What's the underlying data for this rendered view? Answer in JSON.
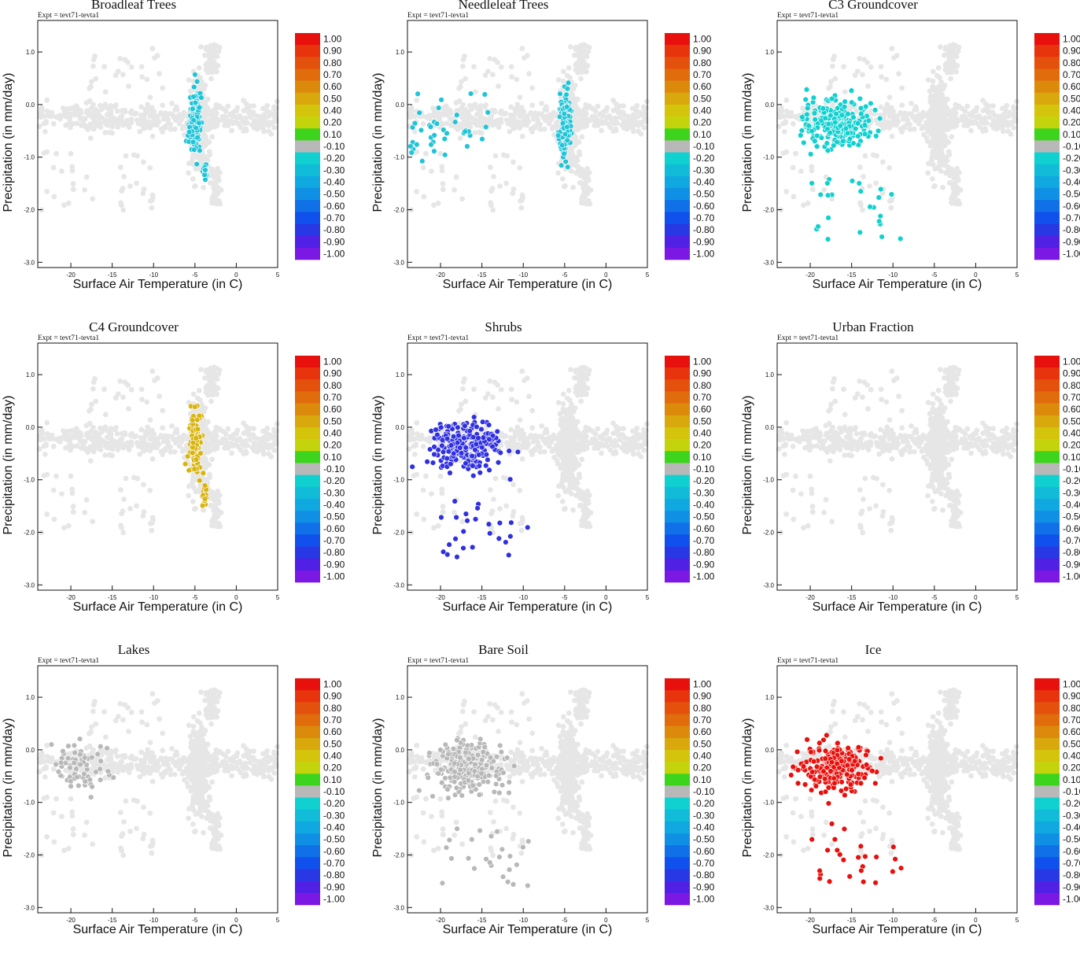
{
  "figure": {
    "expt_label": "Expt = tevt71-tevta1",
    "xlabel": "Surface Air Temperature (in C)",
    "ylabel": "Precipitation (in mm/day)"
  },
  "colorbar": {
    "labels": [
      "1.00",
      "0.90",
      "0.80",
      "0.70",
      "0.60",
      "0.50",
      "0.40",
      "0.20",
      "0.10",
      "-0.10",
      "-0.20",
      "-0.30",
      "-0.40",
      "-0.50",
      "-0.60",
      "-0.70",
      "-0.80",
      "-0.90",
      "-1.00"
    ],
    "colors": [
      "#e8100c",
      "#e8340c",
      "#e4510c",
      "#e06c0c",
      "#dc8a0c",
      "#d8a80c",
      "#d4c40c",
      "#c4d40c",
      "#3cd41c",
      "#b8b8b8",
      "#10d0d0",
      "#10bcd8",
      "#10a8e0",
      "#1090e4",
      "#1070e8",
      "#1050ec",
      "#2838e4",
      "#5020e4",
      "#7c18e4"
    ]
  },
  "chart_data": [
    {
      "type": "scatter",
      "title": "Broadleaf Trees",
      "xlim": [
        -24,
        5
      ],
      "ylim": [
        -3.1,
        1.6
      ],
      "xticks": [
        -20,
        -15,
        -10,
        -5,
        0,
        5
      ],
      "yticks": [
        1.0,
        0.0,
        -1.0,
        -2.0,
        -3.0
      ],
      "xlabel": "Surface Air Temperature (in C)",
      "ylabel": "Precipitation (in mm/day)",
      "highlight": "tropical",
      "highlight_color": "#20c4d8"
    },
    {
      "type": "scatter",
      "title": "Needleleaf Trees",
      "xlim": [
        -24,
        5
      ],
      "ylim": [
        -3.1,
        1.6
      ],
      "xticks": [
        -20,
        -15,
        -10,
        -5,
        0,
        5
      ],
      "yticks": [
        1.0,
        0.0,
        -1.0,
        -2.0,
        -3.0
      ],
      "xlabel": "Surface Air Temperature (in C)",
      "ylabel": "Precipitation (in mm/day)",
      "highlight": "tropical+cold",
      "highlight_color": "#20c4d8"
    },
    {
      "type": "scatter",
      "title": "C3 Groundcover",
      "xlim": [
        -24,
        5
      ],
      "ylim": [
        -3.1,
        1.6
      ],
      "xticks": [
        -20,
        -15,
        -10,
        -5,
        0,
        5
      ],
      "yticks": [
        1.0,
        0.0,
        -1.0,
        -2.0,
        -3.0
      ],
      "xlabel": "Surface Air Temperature (in C)",
      "ylabel": "Precipitation (in mm/day)",
      "highlight": "cold",
      "highlight_color": "#10d0d0"
    },
    {
      "type": "scatter",
      "title": "C4 Groundcover",
      "xlim": [
        -24,
        5
      ],
      "ylim": [
        -3.1,
        1.6
      ],
      "xticks": [
        -20,
        -15,
        -10,
        -5,
        0,
        5
      ],
      "yticks": [
        1.0,
        0.0,
        -1.0,
        -2.0,
        -3.0
      ],
      "xlabel": "Surface Air Temperature (in C)",
      "ylabel": "Precipitation (in mm/day)",
      "highlight": "tropical",
      "highlight_color": "#d8b40c"
    },
    {
      "type": "scatter",
      "title": "Shrubs",
      "xlim": [
        -24,
        5
      ],
      "ylim": [
        -3.1,
        1.6
      ],
      "xticks": [
        -20,
        -15,
        -10,
        -5,
        0,
        5
      ],
      "yticks": [
        1.0,
        0.0,
        -1.0,
        -2.0,
        -3.0
      ],
      "xlabel": "Surface Air Temperature (in C)",
      "ylabel": "Precipitation (in mm/day)",
      "highlight": "cold",
      "highlight_color": "#3030e0"
    },
    {
      "type": "scatter",
      "title": "Urban Fraction",
      "xlim": [
        -24,
        5
      ],
      "ylim": [
        -3.1,
        1.6
      ],
      "xticks": [
        -20,
        -15,
        -10,
        -5,
        0,
        5
      ],
      "yticks": [
        1.0,
        0.0,
        -1.0,
        -2.0,
        -3.0
      ],
      "xlabel": "Surface Air Temperature (in C)",
      "ylabel": "Precipitation (in mm/day)",
      "highlight": "none",
      "highlight_color": "#e6e6e6"
    },
    {
      "type": "scatter",
      "title": "Lakes",
      "xlim": [
        -24,
        5
      ],
      "ylim": [
        -3.1,
        1.6
      ],
      "xticks": [
        -20,
        -15,
        -10,
        -5,
        0,
        5
      ],
      "yticks": [
        1.0,
        0.0,
        -1.0,
        -2.0,
        -3.0
      ],
      "xlabel": "Surface Air Temperature (in C)",
      "ylabel": "Precipitation (in mm/day)",
      "highlight": "cold-sparse",
      "highlight_color": "#b8b8b8"
    },
    {
      "type": "scatter",
      "title": "Bare Soil",
      "xlim": [
        -24,
        5
      ],
      "ylim": [
        -3.1,
        1.6
      ],
      "xticks": [
        -20,
        -15,
        -10,
        -5,
        0,
        5
      ],
      "yticks": [
        1.0,
        0.0,
        -1.0,
        -2.0,
        -3.0
      ],
      "xlabel": "Surface Air Temperature (in C)",
      "ylabel": "Precipitation (in mm/day)",
      "highlight": "cold",
      "highlight_color": "#b8b8b8"
    },
    {
      "type": "scatter",
      "title": "Ice",
      "xlim": [
        -24,
        5
      ],
      "ylim": [
        -3.1,
        1.6
      ],
      "xticks": [
        -20,
        -15,
        -10,
        -5,
        0,
        5
      ],
      "yticks": [
        1.0,
        0.0,
        -1.0,
        -2.0,
        -3.0
      ],
      "xlabel": "Surface Air Temperature (in C)",
      "ylabel": "Precipitation (in mm/day)",
      "highlight": "cold",
      "highlight_color": "#e8100c"
    }
  ]
}
